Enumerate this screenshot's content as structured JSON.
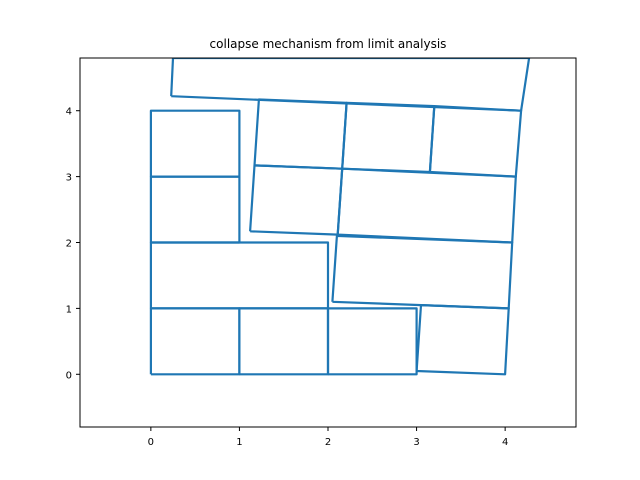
{
  "chart_data": {
    "type": "line",
    "title": "collapse mechanism from limit analysis",
    "xlabel": "",
    "ylabel": "",
    "xlim": [
      -0.8,
      4.8
    ],
    "ylim": [
      -0.8,
      4.8
    ],
    "xticks": [
      0,
      1,
      2,
      3,
      4
    ],
    "yticks": [
      0,
      1,
      2,
      3,
      4
    ],
    "grid": false,
    "line_color": "#1f77b4",
    "blocks": [
      [
        [
          0,
          0
        ],
        [
          1,
          0
        ],
        [
          1,
          1
        ],
        [
          0,
          1
        ],
        [
          0,
          0
        ]
      ],
      [
        [
          1,
          0
        ],
        [
          2,
          0
        ],
        [
          2,
          1
        ],
        [
          1,
          1
        ],
        [
          1,
          0
        ]
      ],
      [
        [
          2,
          0
        ],
        [
          3,
          0
        ],
        [
          3,
          1
        ],
        [
          2,
          1
        ],
        [
          2,
          0
        ]
      ],
      [
        [
          0,
          1
        ],
        [
          2,
          1
        ],
        [
          2,
          2
        ],
        [
          0,
          2
        ],
        [
          0,
          1
        ]
      ],
      [
        [
          0,
          2
        ],
        [
          1,
          2
        ],
        [
          1,
          3
        ],
        [
          0,
          3
        ],
        [
          0,
          2
        ]
      ],
      [
        [
          0,
          3
        ],
        [
          1,
          3
        ],
        [
          1,
          4
        ],
        [
          0,
          4
        ],
        [
          0,
          3
        ]
      ],
      [
        [
          3.0,
          0.05
        ],
        [
          3.05,
          1.05
        ],
        [
          4.04,
          1.0
        ],
        [
          4.0,
          0.0
        ],
        [
          3.0,
          0.05
        ]
      ],
      [
        [
          2.05,
          1.1
        ],
        [
          2.1,
          2.1
        ],
        [
          4.08,
          2.0
        ],
        [
          4.04,
          1.0
        ],
        [
          2.05,
          1.1
        ]
      ],
      [
        [
          1.12,
          2.17
        ],
        [
          1.17,
          3.17
        ],
        [
          2.16,
          3.12
        ],
        [
          2.11,
          2.12
        ],
        [
          1.12,
          2.17
        ]
      ],
      [
        [
          2.11,
          2.12
        ],
        [
          2.16,
          3.12
        ],
        [
          4.12,
          3.0
        ],
        [
          4.08,
          2.0
        ],
        [
          2.11,
          2.12
        ]
      ],
      [
        [
          1.17,
          3.17
        ],
        [
          1.22,
          4.17
        ],
        [
          2.21,
          4.12
        ],
        [
          2.16,
          3.12
        ],
        [
          1.17,
          3.17
        ]
      ],
      [
        [
          2.16,
          3.12
        ],
        [
          2.21,
          4.12
        ],
        [
          3.2,
          4.07
        ],
        [
          3.15,
          3.07
        ],
        [
          2.16,
          3.12
        ]
      ],
      [
        [
          3.15,
          3.07
        ],
        [
          3.2,
          4.07
        ],
        [
          4.18,
          4.0
        ],
        [
          4.12,
          3.0
        ],
        [
          3.15,
          3.07
        ]
      ],
      [
        [
          0.23,
          4.22
        ],
        [
          4.18,
          4.0
        ],
        [
          4.27,
          4.8
        ],
        [
          0.25,
          4.8
        ],
        [
          0.23,
          4.22
        ]
      ]
    ]
  }
}
